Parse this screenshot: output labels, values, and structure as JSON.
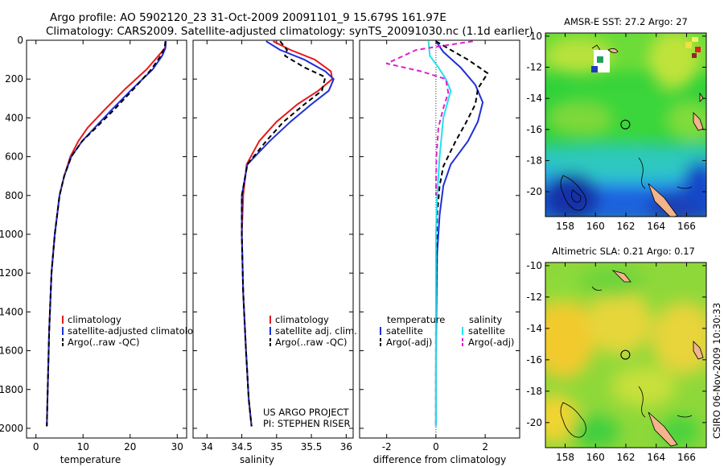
{
  "figure": {
    "title_line1": "Argo profile: AO 5902120_23 31-Oct-2009 20091101_9 15.679S 161.97E",
    "title_line2": "Climatology: CARS2009. Satellite-adjusted climatology: synTS_20091030.nc (1.1d earlier)",
    "credit_line1": "US ARGO PROJECT",
    "credit_line2": "PI: STEPHEN RISER",
    "timestamp": "CSIRO 06-Nov-2009 10:30:33",
    "colors": {
      "climatology": "#e41a1c",
      "satellite": "#1f2fd6",
      "argo": "#000000",
      "sal_satellite": "#22e1f0",
      "sal_argo": "#e01fcf"
    }
  },
  "chart_data": [
    {
      "type": "line",
      "id": "temperature",
      "xlabel": "temperature",
      "ylabel": "",
      "xlim": [
        -2,
        32
      ],
      "ylim": [
        2050,
        0
      ],
      "xticks": [
        "0",
        "10",
        "20",
        "30"
      ],
      "yticks": [
        "0",
        "200",
        "400",
        "600",
        "800",
        "1000",
        "1200",
        "1400",
        "1600",
        "1800",
        "2000"
      ],
      "legend": [
        "climatology",
        "satellite-adjusted climatology",
        "Argo(..raw -QC)"
      ],
      "series": [
        {
          "name": "climatology",
          "color": "#e41a1c",
          "dash": "",
          "x": [
            27.6,
            27.4,
            26.0,
            23.5,
            19.0,
            14.5,
            11.0,
            9.0,
            7.3,
            6.0,
            5.0,
            4.0,
            3.3,
            2.8,
            2.5,
            2.3
          ],
          "y": [
            5,
            40,
            80,
            150,
            250,
            360,
            450,
            520,
            600,
            700,
            800,
            1000,
            1200,
            1500,
            1800,
            1990
          ]
        },
        {
          "name": "satellite-adjusted climatology",
          "color": "#1f2fd6",
          "dash": "",
          "x": [
            27.6,
            27.5,
            26.8,
            24.8,
            20.5,
            16.0,
            12.5,
            9.8,
            7.5,
            6.0,
            5.0,
            4.0,
            3.3,
            2.8,
            2.5,
            2.3
          ],
          "y": [
            5,
            40,
            80,
            150,
            250,
            360,
            450,
            520,
            600,
            700,
            800,
            1000,
            1200,
            1500,
            1800,
            1990
          ]
        },
        {
          "name": "Argo(..raw -QC)",
          "color": "#000000",
          "dash": "6,4",
          "x": [
            27.5,
            27.3,
            26.5,
            24.5,
            20.8,
            16.5,
            12.8,
            9.8,
            7.5,
            6.0,
            5.0,
            4.0,
            3.3,
            2.8,
            2.5,
            2.3
          ],
          "y": [
            5,
            40,
            80,
            150,
            250,
            360,
            450,
            520,
            600,
            700,
            800,
            1000,
            1200,
            1500,
            1800,
            1990
          ]
        }
      ]
    },
    {
      "type": "line",
      "id": "salinity",
      "xlabel": "salinity",
      "ylabel": "",
      "xlim": [
        33.8,
        36.1
      ],
      "ylim": [
        2050,
        0
      ],
      "xticks": [
        "34",
        "34.5",
        "35",
        "35.5",
        "36"
      ],
      "legend": [
        "climatology",
        "satellite adj. clim.",
        "Argo(..raw -QC)"
      ],
      "series": [
        {
          "name": "climatology",
          "color": "#e41a1c",
          "dash": "",
          "x": [
            34.95,
            35.2,
            35.55,
            35.78,
            35.8,
            35.6,
            35.3,
            35.0,
            34.75,
            34.57,
            34.52,
            34.5,
            34.52,
            34.56,
            34.6,
            34.64
          ],
          "y": [
            5,
            50,
            100,
            160,
            200,
            260,
            330,
            420,
            520,
            640,
            800,
            1000,
            1300,
            1600,
            1850,
            1990
          ]
        },
        {
          "name": "satellite adj. clim.",
          "color": "#1f2fd6",
          "dash": "",
          "x": [
            34.85,
            35.05,
            35.4,
            35.7,
            35.82,
            35.75,
            35.5,
            35.2,
            34.9,
            34.58,
            34.5,
            34.5,
            34.52,
            34.56,
            34.6,
            34.64
          ],
          "y": [
            5,
            50,
            100,
            160,
            200,
            260,
            330,
            420,
            520,
            640,
            800,
            1000,
            1300,
            1600,
            1850,
            1990
          ]
        },
        {
          "name": "Argo(..raw -QC)",
          "color": "#000000",
          "dash": "6,4",
          "x": [
            35.05,
            35.15,
            35.12,
            35.4,
            35.7,
            35.65,
            35.4,
            35.1,
            34.85,
            34.58,
            34.5,
            34.5,
            34.52,
            34.56,
            34.6,
            34.64
          ],
          "y": [
            5,
            50,
            80,
            140,
            190,
            260,
            330,
            420,
            520,
            640,
            800,
            1000,
            1300,
            1600,
            1850,
            1990
          ]
        }
      ]
    },
    {
      "type": "line",
      "id": "difference",
      "xlabel": "difference from climatology",
      "ylabel": "",
      "xlim": [
        -3.1,
        3.4
      ],
      "ylim": [
        2050,
        0
      ],
      "xticks": [
        "-2",
        "0",
        "2"
      ],
      "legend_titles": [
        "temperature",
        "salinity"
      ],
      "legend": [
        "satellite",
        "Argo(-adj)",
        "satellite",
        "Argo(-adj)"
      ],
      "series": [
        {
          "name": "satellite",
          "group": "temperature",
          "color": "#1f2fd6",
          "dash": "",
          "x": [
            0.0,
            0.3,
            1.0,
            1.6,
            1.9,
            1.7,
            1.3,
            0.6,
            0.3,
            0.15,
            0.05,
            0.02,
            0.0,
            0.0
          ],
          "y": [
            5,
            60,
            140,
            230,
            320,
            420,
            520,
            640,
            750,
            900,
            1100,
            1400,
            1700,
            1990
          ]
        },
        {
          "name": "Argo(-adj)",
          "group": "temperature",
          "color": "#000000",
          "dash": "6,4",
          "x": [
            0.0,
            0.6,
            1.3,
            2.1,
            1.7,
            1.6,
            1.2,
            0.8,
            0.3,
            0.15,
            0.05,
            0.02,
            0.0,
            0.0
          ],
          "y": [
            5,
            50,
            100,
            170,
            250,
            330,
            430,
            520,
            650,
            750,
            900,
            1100,
            1500,
            1990
          ]
        },
        {
          "name": "satellite",
          "group": "salinity",
          "color": "#22e1f0",
          "dash": "",
          "x": [
            -0.3,
            -0.25,
            0.1,
            0.4,
            0.6,
            0.3,
            0.15,
            0.05,
            0.0,
            0.0,
            0.0
          ],
          "y": [
            5,
            80,
            140,
            200,
            260,
            400,
            600,
            800,
            1000,
            1500,
            1990
          ]
        },
        {
          "name": "Argo(-adj)",
          "group": "salinity",
          "color": "#e01fcf",
          "dash": "6,4",
          "x": [
            1.5,
            -0.8,
            -2.0,
            -0.6,
            0.4,
            0.5,
            0.3,
            0.1,
            0.02,
            0.0
          ],
          "y": [
            5,
            50,
            120,
            160,
            200,
            270,
            350,
            450,
            600,
            800
          ]
        }
      ]
    },
    {
      "type": "heatmap",
      "id": "amsre-sst",
      "title": "AMSR-E SST: 27.2 Argo: 27",
      "xticks": [
        "158",
        "160",
        "162",
        "164",
        "166"
      ],
      "yticks": [
        "-10",
        "-12",
        "-14",
        "-16",
        "-18",
        "-20"
      ],
      "xlim": [
        156.7,
        167.3
      ],
      "ylim": [
        -21.6,
        -9.8
      ],
      "marker": {
        "lon": 161.97,
        "lat": -15.679
      }
    },
    {
      "type": "heatmap",
      "id": "altimetric-sla",
      "title": "Altimetric SLA: 0.21 Argo: 0.17",
      "xticks": [
        "158",
        "160",
        "162",
        "164",
        "166"
      ],
      "yticks": [
        "-10",
        "-12",
        "-14",
        "-16",
        "-18",
        "-20"
      ],
      "xlim": [
        156.7,
        167.3
      ],
      "ylim": [
        -21.6,
        -9.8
      ],
      "marker": {
        "lon": 161.97,
        "lat": -15.679
      }
    }
  ]
}
